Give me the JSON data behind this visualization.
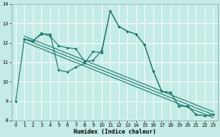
{
  "xlabel": "Humidex (Indice chaleur)",
  "bg_color": "#c5ebe6",
  "grid_color": "#ffffff",
  "line_color": "#1a7a6e",
  "xlim": [
    -0.5,
    23.5
  ],
  "ylim": [
    8,
    14
  ],
  "yticks": [
    8,
    9,
    10,
    11,
    12,
    13,
    14
  ],
  "xticks": [
    0,
    1,
    2,
    3,
    4,
    5,
    6,
    7,
    8,
    9,
    10,
    11,
    12,
    13,
    14,
    15,
    16,
    17,
    18,
    19,
    20,
    21,
    22,
    23
  ],
  "line1_x": [
    0,
    1,
    2,
    3,
    4,
    5,
    6,
    7,
    8,
    9,
    10,
    11,
    12,
    13,
    14,
    15,
    16,
    17,
    18,
    19,
    20,
    21,
    22,
    23
  ],
  "line1_y": [
    9.0,
    12.2,
    12.1,
    12.45,
    12.45,
    10.6,
    10.5,
    10.75,
    10.95,
    11.55,
    11.5,
    13.65,
    12.85,
    12.6,
    12.45,
    11.9,
    10.55,
    9.5,
    9.45,
    8.75,
    8.75,
    8.3,
    8.25,
    8.3
  ],
  "line2_x": [
    1,
    2,
    3,
    4,
    5,
    6,
    7,
    8,
    9,
    10,
    11,
    12,
    13,
    14,
    15,
    16,
    17,
    18,
    19,
    20,
    21,
    22,
    23
  ],
  "line2_y": [
    12.2,
    12.1,
    12.5,
    12.35,
    11.85,
    11.75,
    11.7,
    11.05,
    11.1,
    11.6,
    13.65,
    12.85,
    12.6,
    12.45,
    11.9,
    10.55,
    9.5,
    9.45,
    8.75,
    8.75,
    8.3,
    8.25,
    8.3
  ],
  "line3_x": [
    1,
    23
  ],
  "line3_y": [
    12.2,
    8.3
  ],
  "line4_x": [
    1,
    23
  ],
  "line4_y": [
    12.35,
    8.45
  ],
  "line5_x": [
    1,
    23
  ],
  "line5_y": [
    12.05,
    8.15
  ]
}
